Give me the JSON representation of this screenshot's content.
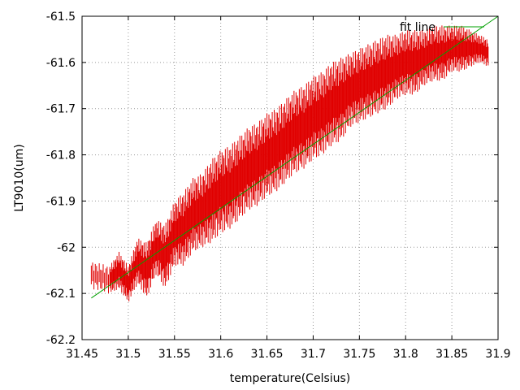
{
  "chart_data": {
    "type": "scatter",
    "xlabel": "temperature(Celsius)",
    "ylabel": "LT9010(um)",
    "xlim": [
      31.45,
      31.9
    ],
    "ylim": [
      -62.2,
      -61.5
    ],
    "xticks": [
      "31.45",
      "31.5",
      "31.55",
      "31.6",
      "31.65",
      "31.7",
      "31.75",
      "31.8",
      "31.85",
      "31.9"
    ],
    "yticks": [
      "-61.5",
      "-61.6",
      "-61.7",
      "-61.8",
      "-61.9",
      "-62",
      "-62.1",
      "-62.2"
    ],
    "grid": true,
    "legend_position": "top-right",
    "series": [
      {
        "color": "#e00000",
        "style": "points",
        "points": [
          [
            31.46,
            -62.06
          ],
          [
            31.48,
            -62.07
          ],
          [
            31.49,
            -62.05
          ],
          [
            31.5,
            -62.08
          ],
          [
            31.51,
            -62.03
          ],
          [
            31.52,
            -62.05
          ],
          [
            31.53,
            -62.0
          ],
          [
            31.54,
            -62.02
          ],
          [
            31.55,
            -61.97
          ],
          [
            31.56,
            -61.96
          ],
          [
            31.57,
            -61.93
          ],
          [
            31.58,
            -61.92
          ],
          [
            31.59,
            -61.9
          ],
          [
            31.6,
            -61.88
          ],
          [
            31.61,
            -61.87
          ],
          [
            31.62,
            -61.85
          ],
          [
            31.63,
            -61.83
          ],
          [
            31.64,
            -61.82
          ],
          [
            31.65,
            -61.8
          ],
          [
            31.66,
            -61.79
          ],
          [
            31.67,
            -61.77
          ],
          [
            31.68,
            -61.75
          ],
          [
            31.69,
            -61.74
          ],
          [
            31.7,
            -61.72
          ],
          [
            31.71,
            -61.71
          ],
          [
            31.72,
            -61.69
          ],
          [
            31.73,
            -61.68
          ],
          [
            31.74,
            -61.66
          ],
          [
            31.75,
            -61.65
          ],
          [
            31.76,
            -61.64
          ],
          [
            31.77,
            -61.63
          ],
          [
            31.78,
            -61.62
          ],
          [
            31.79,
            -61.61
          ],
          [
            31.8,
            -61.6
          ],
          [
            31.81,
            -61.6
          ],
          [
            31.82,
            -61.59
          ],
          [
            31.83,
            -61.58
          ],
          [
            31.84,
            -61.58
          ],
          [
            31.85,
            -61.57
          ],
          [
            31.86,
            -61.57
          ],
          [
            31.87,
            -61.57
          ],
          [
            31.88,
            -61.57
          ],
          [
            31.89,
            -61.58
          ]
        ],
        "spread": [
          0.03,
          0.03,
          0.04,
          0.04,
          0.05,
          0.06,
          0.06,
          0.07,
          0.07,
          0.08,
          0.08,
          0.08,
          0.09,
          0.09,
          0.09,
          0.09,
          0.09,
          0.09,
          0.09,
          0.09,
          0.09,
          0.09,
          0.09,
          0.09,
          0.09,
          0.09,
          0.09,
          0.08,
          0.08,
          0.08,
          0.08,
          0.08,
          0.07,
          0.07,
          0.07,
          0.06,
          0.06,
          0.06,
          0.05,
          0.05,
          0.04,
          0.03,
          0.03
        ]
      },
      {
        "name": "fit line",
        "color": "#00a000",
        "style": "line",
        "x": [
          31.46,
          31.9
        ],
        "y": [
          -62.11,
          -61.5
        ]
      }
    ]
  }
}
